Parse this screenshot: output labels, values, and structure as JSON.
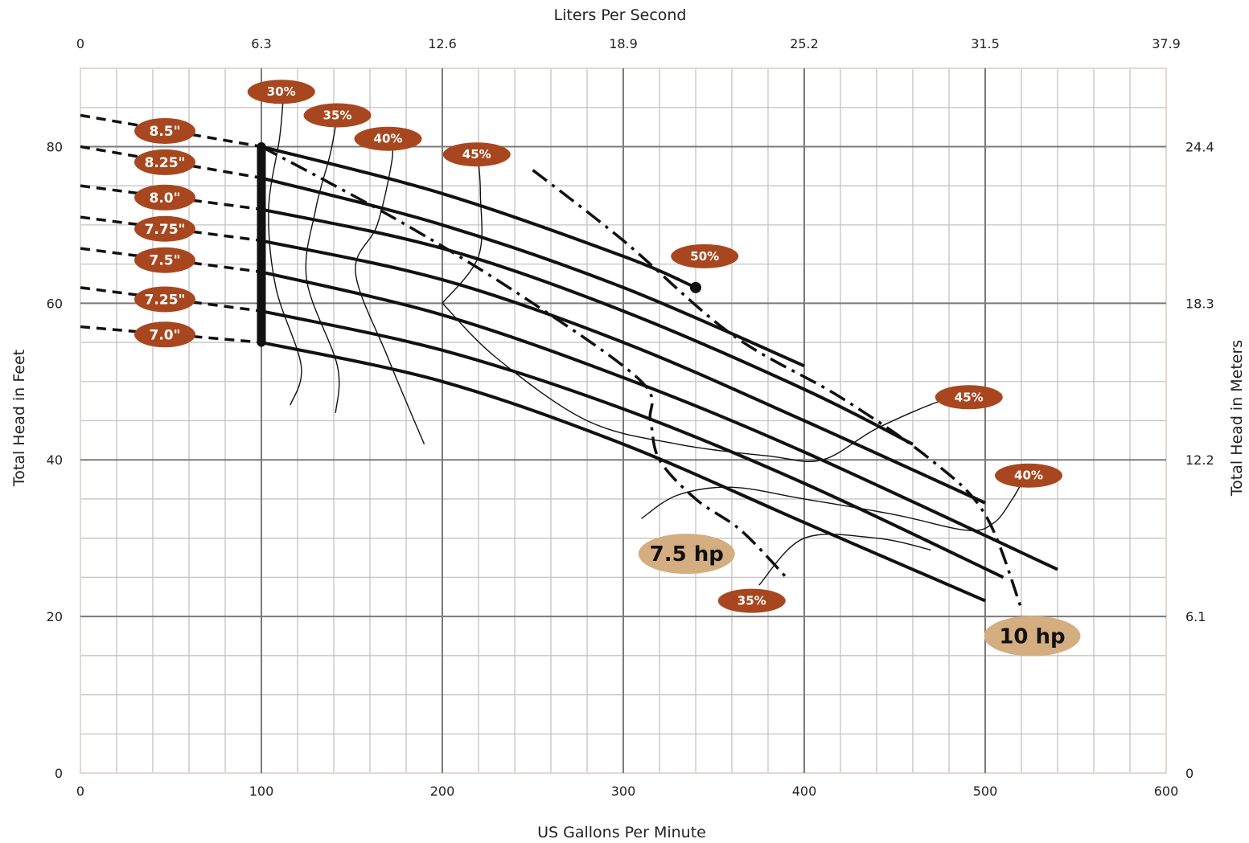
{
  "chart_data": {
    "type": "line",
    "xlabel": "US Gallons Per Minute",
    "ylabel": "Total Head in Feet",
    "x2label": "Liters Per Second",
    "y2label": "Total Head in Meters",
    "xlim": [
      0,
      600
    ],
    "ylim": [
      0,
      90
    ],
    "x_ticks": [
      "0",
      "100",
      "200",
      "300",
      "400",
      "500",
      "600"
    ],
    "y_ticks": [
      "0",
      "20",
      "40",
      "60",
      "80"
    ],
    "x2_ticks": [
      "0",
      "6.3",
      "12.6",
      "18.9",
      "25.2",
      "31.5",
      "37.9"
    ],
    "y2_ticks": [
      "0",
      "6.1",
      "12.2",
      "18.3",
      "24.4"
    ],
    "grid": true,
    "colors": {
      "impeller_badge": "#A8471F",
      "efficiency_badge": "#A8471F",
      "hp_badge": "#D4AE80",
      "curve": "#111111",
      "grid_major": "#7a7a7a",
      "grid_minor": "#c4c4c4",
      "frame": "#e6d8cc"
    },
    "series": [
      {
        "name": "8.5\"",
        "label": "8.5\"",
        "lead_in": [
          [
            0,
            84
          ],
          [
            100,
            80
          ]
        ],
        "x": [
          100,
          200,
          300,
          340
        ],
        "y": [
          80,
          74,
          66,
          62
        ]
      },
      {
        "name": "8.25\"",
        "label": "8.25\"",
        "lead_in": [
          [
            0,
            80
          ],
          [
            100,
            76
          ]
        ],
        "x": [
          100,
          200,
          300,
          400
        ],
        "y": [
          76,
          70,
          62,
          52
        ]
      },
      {
        "name": "8.0\"",
        "label": "8.0\"",
        "lead_in": [
          [
            0,
            75
          ],
          [
            100,
            72
          ]
        ],
        "x": [
          100,
          200,
          300,
          400,
          460
        ],
        "y": [
          72,
          67,
          59,
          49,
          42
        ]
      },
      {
        "name": "7.75\"",
        "label": "7.75\"",
        "lead_in": [
          [
            0,
            71
          ],
          [
            100,
            68
          ]
        ],
        "x": [
          100,
          200,
          300,
          400,
          500
        ],
        "y": [
          68,
          63,
          55,
          45,
          34.5
        ]
      },
      {
        "name": "7.5\"",
        "label": "7.5\"",
        "lead_in": [
          [
            0,
            67
          ],
          [
            100,
            64
          ]
        ],
        "x": [
          100,
          200,
          300,
          400,
          540
        ],
        "y": [
          64,
          58.5,
          50.5,
          41,
          26
        ]
      },
      {
        "name": "7.25\"",
        "label": "7.25\"",
        "lead_in": [
          [
            0,
            62
          ],
          [
            100,
            59
          ]
        ],
        "x": [
          100,
          200,
          300,
          400,
          510
        ],
        "y": [
          59,
          54,
          46.5,
          37,
          25
        ]
      },
      {
        "name": "7.0\"",
        "label": "7.0\"",
        "lead_in": [
          [
            0,
            57
          ],
          [
            100,
            55
          ]
        ],
        "x": [
          100,
          200,
          300,
          400,
          500
        ],
        "y": [
          55,
          50,
          42,
          32,
          22
        ]
      }
    ],
    "min_flow_line": {
      "x": 100,
      "y_from": 55,
      "y_to": 80
    },
    "efficiency_curves": [
      {
        "label": "30%",
        "points": [
          [
            116,
            47
          ],
          [
            122,
            52
          ],
          [
            108,
            62
          ],
          [
            104,
            72
          ],
          [
            110,
            81
          ],
          [
            112,
            86
          ]
        ]
      },
      {
        "label": "35%",
        "points": [
          [
            141,
            46
          ],
          [
            142,
            52
          ],
          [
            125,
            63
          ],
          [
            130,
            72
          ],
          [
            138,
            79
          ],
          [
            142,
            84
          ]
        ]
      },
      {
        "label": "40%",
        "points": [
          [
            190,
            42
          ],
          [
            170,
            53
          ],
          [
            152,
            64
          ],
          [
            164,
            70
          ],
          [
            172,
            78
          ],
          [
            172,
            81
          ]
        ]
      },
      {
        "label": "45%",
        "points": [
          [
            200,
            60
          ],
          [
            220,
            66
          ],
          [
            221,
            74
          ],
          [
            220,
            78
          ],
          [
            219,
            80
          ]
        ]
      },
      {
        "label": "45%",
        "points": [
          [
            200,
            60
          ],
          [
            230,
            53
          ],
          [
            280,
            45
          ],
          [
            330,
            42
          ],
          [
            380,
            40.5
          ],
          [
            410,
            40
          ],
          [
            440,
            44
          ],
          [
            475,
            47.5
          ],
          [
            490,
            48
          ]
        ]
      },
      {
        "label": "35%",
        "points": [
          [
            375,
            24
          ],
          [
            400,
            30
          ],
          [
            440,
            30
          ],
          [
            470,
            28.5
          ]
        ]
      },
      {
        "label": "40%",
        "points": [
          [
            310,
            32.5
          ],
          [
            330,
            35.5
          ],
          [
            360,
            36.5
          ],
          [
            400,
            35
          ],
          [
            450,
            33
          ],
          [
            490,
            31
          ],
          [
            505,
            32
          ],
          [
            515,
            35
          ],
          [
            520,
            37
          ]
        ]
      }
    ],
    "efficiency_labels": [
      {
        "label": "30%",
        "x": 111,
        "y": 87
      },
      {
        "label": "35%",
        "x": 142,
        "y": 84
      },
      {
        "label": "40%",
        "x": 170,
        "y": 81
      },
      {
        "label": "45%",
        "x": 219,
        "y": 79
      },
      {
        "label": "50%",
        "x": 345,
        "y": 66
      },
      {
        "label": "45%",
        "x": 491,
        "y": 48
      },
      {
        "label": "40%",
        "x": 524,
        "y": 38
      },
      {
        "label": "35%",
        "x": 371,
        "y": 22
      }
    ],
    "bep_point": {
      "x": 340,
      "y": 62
    },
    "hp_curves": [
      {
        "label": "7.5 hp",
        "points": [
          [
            100,
            80
          ],
          [
            180,
            70
          ],
          [
            250,
            60
          ],
          [
            310,
            50
          ],
          [
            315,
            45
          ],
          [
            320,
            40
          ],
          [
            340,
            35
          ],
          [
            365,
            31
          ],
          [
            390,
            25
          ]
        ],
        "label_at": [
          335,
          28
        ]
      },
      {
        "label": "10 hp",
        "points": [
          [
            250,
            77
          ],
          [
            300,
            68
          ],
          [
            360,
            56
          ],
          [
            420,
            48
          ],
          [
            470,
            40
          ],
          [
            500,
            33
          ],
          [
            520,
            21
          ]
        ],
        "label_at": [
          526,
          17.5
        ]
      }
    ]
  }
}
